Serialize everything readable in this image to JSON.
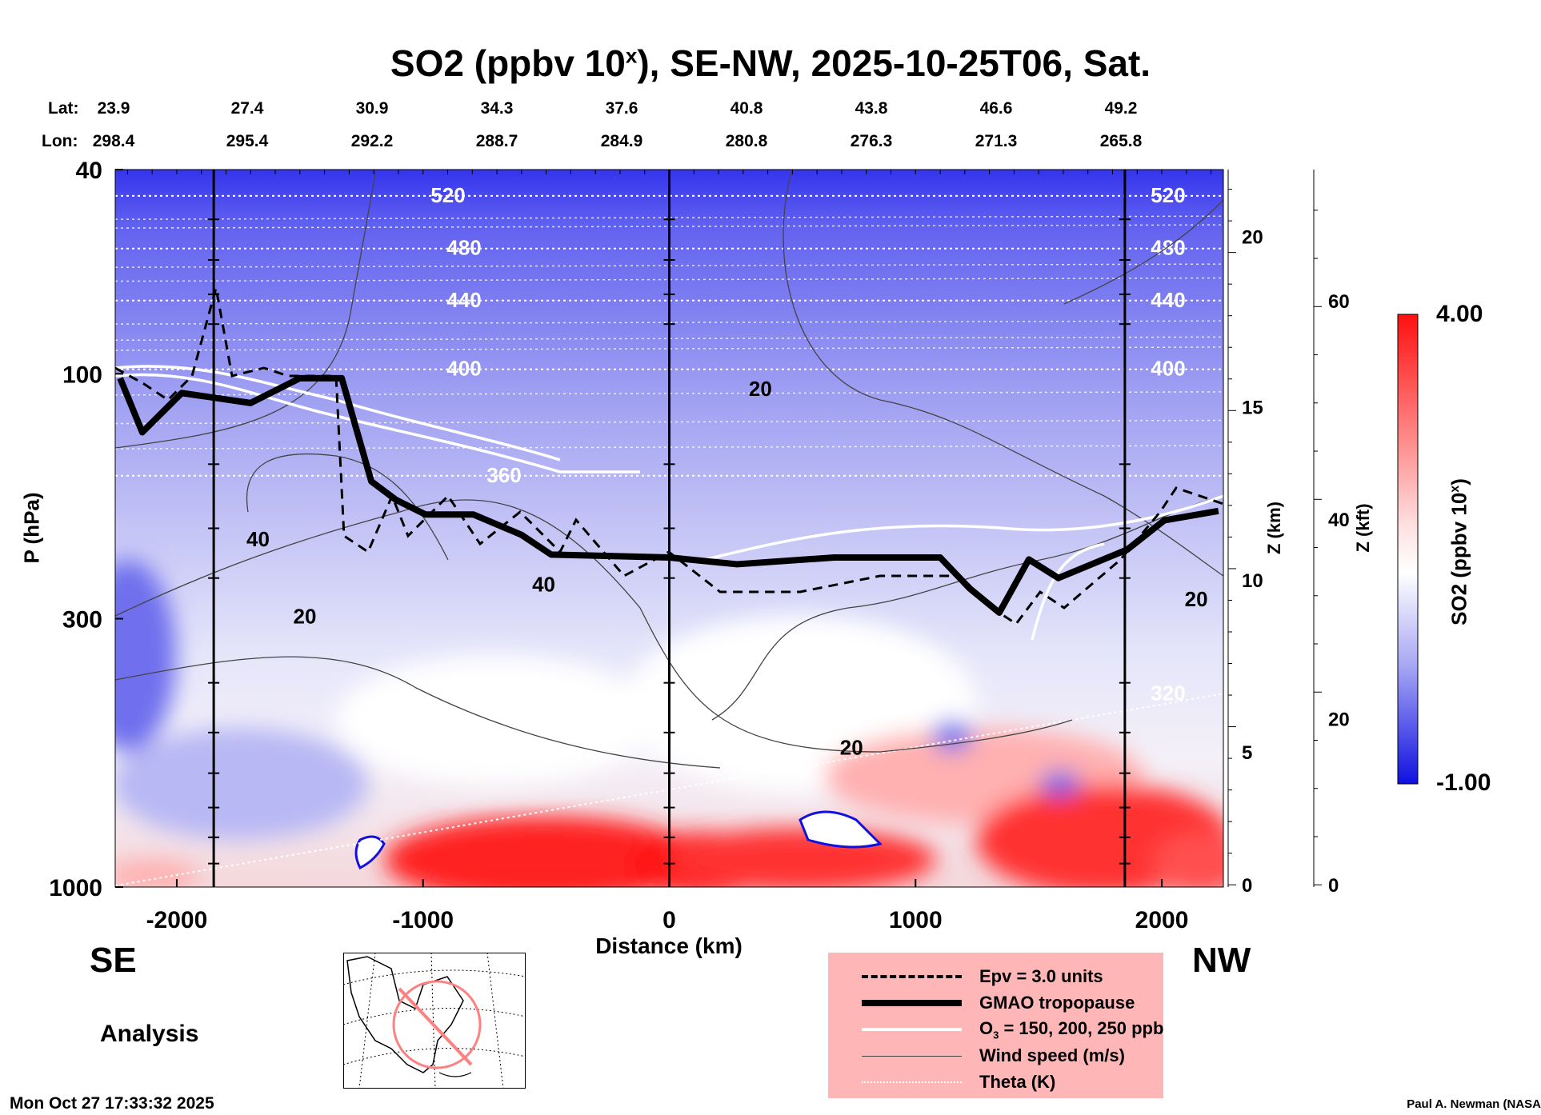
{
  "title_main": "SO2 (ppbv 10",
  "title_sup": "x",
  "title_rest": "), SE-NW, 2025-10-25T06, Sat.",
  "lat_label": "Lat:",
  "lon_label": "Lon:",
  "lat_values": [
    "23.9",
    "27.4",
    "30.9",
    "34.3",
    "37.6",
    "40.8",
    "43.8",
    "46.6",
    "49.2"
  ],
  "lon_values": [
    "298.4",
    "295.4",
    "292.2",
    "288.7",
    "284.9",
    "280.8",
    "276.3",
    "271.3",
    "265.8"
  ],
  "left_dir": "SE",
  "right_dir": "NW",
  "analysis_label": "Analysis",
  "timestamp": "Mon Oct 27 17:33:32 2025",
  "credit": "Paul A. Newman (NASA",
  "legend": [
    {
      "label": "Epv = 3.0 units",
      "style": "dashed"
    },
    {
      "label": "GMAO tropopause",
      "style": "thick"
    },
    {
      "label": "O3 = 150, 200, 250 ppb",
      "style": "white"
    },
    {
      "label": "Wind speed (m/s)",
      "style": "thin"
    },
    {
      "label": "Theta (K)",
      "style": "dotted"
    }
  ],
  "legend_o3_pre": "O",
  "legend_o3_sub": "3",
  "legend_o3_post": " = 150, 200, 250 ppb",
  "colors": {
    "high": "#ff1010",
    "mid": "#ffffff",
    "low": "#1010e0",
    "legend_bg": "#ffb6b6"
  },
  "chart_data": {
    "type": "heatmap",
    "title": "SO2 (ppbv 10^x), SE-NW, 2025-10-25T06, Sat.",
    "xlabel": "Distance (km)",
    "ylabel": "P (hPa)",
    "ylabel_right1": "Z (km)",
    "ylabel_right2": "Z (kft)",
    "colorbar_label": "SO2 (ppbv 10^x)",
    "xlim": [
      -2250,
      2250
    ],
    "ylim": [
      1000,
      40
    ],
    "yscale": "log",
    "x_ticks": [
      -2000,
      -1000,
      0,
      1000,
      2000
    ],
    "x_tick_labels": [
      "-2000",
      "-1000",
      "0",
      "1000",
      "2000"
    ],
    "y_ticks": [
      40,
      100,
      300,
      1000
    ],
    "y_tick_labels": [
      "40",
      "100",
      "300",
      "1000"
    ],
    "z_km_ticks": [
      {
        "label": "20",
        "p": 54
      },
      {
        "label": "15",
        "p": 116
      },
      {
        "label": "10",
        "p": 252
      },
      {
        "label": "5",
        "p": 545
      },
      {
        "label": "0",
        "p": 990
      }
    ],
    "z_kft_ticks": [
      {
        "label": "60",
        "p": 72
      },
      {
        "label": "40",
        "p": 192
      },
      {
        "label": "20",
        "p": 470
      },
      {
        "label": "0",
        "p": 990
      }
    ],
    "colorbar": {
      "min": -1.0,
      "max": 4.0,
      "min_label": "-1.00",
      "max_label": "4.00"
    },
    "section_markers_km": [
      -1850,
      0,
      1850
    ],
    "tropopause": [
      [
        -2230,
        102
      ],
      [
        -2140,
        130
      ],
      [
        -1980,
        109
      ],
      [
        -1700,
        114
      ],
      [
        -1500,
        102
      ],
      [
        -1330,
        102
      ],
      [
        -1210,
        162
      ],
      [
        -1110,
        176
      ],
      [
        -990,
        188
      ],
      [
        -795,
        188
      ],
      [
        -600,
        206
      ],
      [
        -480,
        225
      ],
      [
        0,
        228
      ],
      [
        275,
        235
      ],
      [
        670,
        228
      ],
      [
        1100,
        228
      ],
      [
        1220,
        262
      ],
      [
        1340,
        292
      ],
      [
        1460,
        230
      ],
      [
        1580,
        250
      ],
      [
        1860,
        220
      ],
      [
        2010,
        193
      ],
      [
        2230,
        185
      ]
    ],
    "theta_levels": [
      {
        "label": "520",
        "p": 45
      },
      {
        "label": "480",
        "p": 57
      },
      {
        "label": "440",
        "p": 72
      },
      {
        "label": "400",
        "p": 98
      },
      {
        "label": "360",
        "p": 158
      },
      {
        "label": "320",
        "p": 420
      }
    ],
    "wind_labels": [
      {
        "label": "20",
        "x": 370,
        "p": 107
      },
      {
        "label": "40",
        "x": -1670,
        "p": 210
      },
      {
        "label": "20",
        "x": -1480,
        "p": 297
      },
      {
        "label": "40",
        "x": -510,
        "p": 257
      },
      {
        "label": "20",
        "x": 740,
        "p": 535
      },
      {
        "label": "20",
        "x": 2140,
        "p": 275
      }
    ]
  }
}
